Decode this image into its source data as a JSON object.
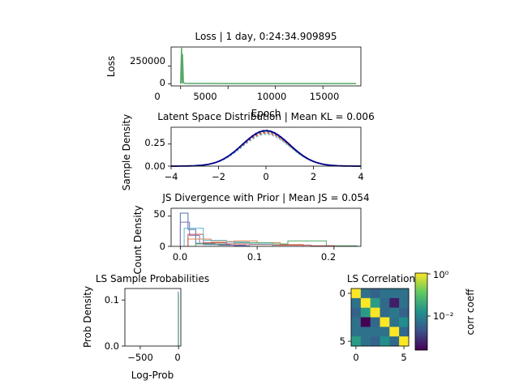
{
  "chart_data": [
    {
      "id": "loss",
      "type": "line",
      "title": "Loss | 1 day, 0:24:34.909895",
      "xlabel": "Epoch",
      "ylabel": "Loss",
      "xlim": [
        -1000,
        19000
      ],
      "ylim": [
        -30000,
        520000
      ],
      "xticks": [
        0,
        5000,
        10000,
        15000
      ],
      "yticks": [
        0,
        250000
      ],
      "color": "#55a868",
      "series": [
        {
          "x": [
            0,
            100,
            150,
            200,
            300,
            500,
            1000,
            5000,
            10000,
            15000,
            18500
          ],
          "y": [
            0,
            510000,
            5000,
            420000,
            12000,
            6000,
            4000,
            3000,
            3000,
            3000,
            3000
          ]
        }
      ]
    },
    {
      "id": "latent",
      "type": "line",
      "title": "Latent Space Distribution | Mean KL = 0.006",
      "xlabel": "",
      "ylabel": "Sample Density",
      "xlim": [
        -4,
        4
      ],
      "ylim": [
        0,
        0.44
      ],
      "xticks": [
        -4,
        -2,
        0,
        2,
        4
      ],
      "yticks": [
        0.0,
        0.25
      ],
      "prior_color": "#00008b",
      "series_colors": [
        "#4c72b0",
        "#dd8452",
        "#55a868",
        "#c44e52",
        "#8172b3",
        "#64b5cd"
      ],
      "series_scales": [
        1.0,
        0.93,
        0.97,
        0.95,
        1.02,
        0.9
      ],
      "prior_peak": 0.4
    },
    {
      "id": "js",
      "type": "histogram",
      "title": "JS Divergence with Prior | Mean JS = 0.054",
      "xlabel": "",
      "ylabel": "Count Density",
      "xlim": [
        -0.012,
        0.235
      ],
      "ylim": [
        0,
        63
      ],
      "xticks": [
        0.0,
        0.1,
        0.2
      ],
      "yticks": [
        0,
        50
      ],
      "series": [
        {
          "color": "#4c72b0",
          "edges": [
            0.0,
            0.01,
            0.02,
            0.03,
            0.05,
            0.07,
            0.09
          ],
          "counts": [
            55,
            28,
            5,
            3,
            2,
            1
          ]
        },
        {
          "color": "#8172b3",
          "edges": [
            0.0,
            0.012,
            0.025,
            0.045,
            0.065,
            0.085
          ],
          "counts": [
            40,
            18,
            5,
            3,
            2
          ]
        },
        {
          "color": "#dd8452",
          "edges": [
            0.01,
            0.04,
            0.07,
            0.1,
            0.13,
            0.16
          ],
          "counts": [
            12,
            8,
            9,
            6,
            3
          ]
        },
        {
          "color": "#55a868",
          "edges": [
            0.02,
            0.07,
            0.12,
            0.14,
            0.19,
            0.23
          ],
          "counts": [
            4,
            6,
            4,
            9,
            1
          ]
        },
        {
          "color": "#c44e52",
          "edges": [
            0.01,
            0.03,
            0.06,
            0.09,
            0.12,
            0.17,
            0.2
          ],
          "counts": [
            20,
            6,
            4,
            3,
            2,
            1
          ]
        },
        {
          "color": "#64b5cd",
          "edges": [
            0.005,
            0.03,
            0.06,
            0.09,
            0.12
          ],
          "counts": [
            30,
            10,
            7,
            4
          ]
        }
      ]
    },
    {
      "id": "logprob",
      "type": "histogram",
      "title": "LS Sample Probabilities",
      "xlabel": "Log-Prob",
      "ylabel": "Prob Density",
      "xlim": [
        -700,
        30
      ],
      "ylim": [
        0,
        0.125
      ],
      "xticks": [
        -500,
        0
      ],
      "yticks": [
        0.0,
        0.1
      ],
      "bars": [
        {
          "x": -3,
          "value": 0.118,
          "color": "#4c72b0"
        },
        {
          "x": 0,
          "value": 0.112,
          "color": "#55a868"
        }
      ]
    },
    {
      "id": "corr",
      "type": "heatmap",
      "title": "LS Correlation",
      "xlabel": "",
      "ylabel": "",
      "xticks": [
        0,
        5
      ],
      "yticks": [
        0,
        5
      ],
      "colorbar_label": "corr coeff",
      "colorbar_ticks": [
        "10⁰",
        "10⁻²"
      ],
      "colormap": "viridis",
      "scale": "log",
      "vmin_exp": -3.5,
      "vmax_exp": 0,
      "matrix_exp": [
        [
          0,
          -2.2,
          -2.4,
          -2.2,
          -2.2,
          -2.2
        ],
        [
          -2.2,
          0,
          -1.6,
          -2.3,
          -3.2,
          -2.2
        ],
        [
          -2.4,
          -1.6,
          0,
          -2.3,
          -2.1,
          -2.4
        ],
        [
          -2.2,
          -3.5,
          -2.3,
          0,
          -2.2,
          -1.8
        ],
        [
          -2.2,
          -2.2,
          -2.2,
          -2.2,
          0,
          -2.3
        ],
        [
          -1.6,
          -2.2,
          -2.4,
          -1.8,
          -2.3,
          0
        ]
      ]
    }
  ],
  "tick_labels": {
    "loss_x": [
      "0",
      "5000",
      "10000",
      "15000"
    ],
    "loss_y": [
      "250000",
      "0"
    ],
    "latent_x": [
      "−4",
      "−2",
      "0",
      "2",
      "4"
    ],
    "latent_y": [
      "0.25",
      "0.00"
    ],
    "js_x": [
      "0.0",
      "0.1",
      "0.2"
    ],
    "js_y": [
      "50",
      "0"
    ],
    "lp_x": [
      "−500",
      "0"
    ],
    "lp_y": [
      "0.1",
      "0.0"
    ],
    "corr_x": [
      "0",
      "5"
    ],
    "corr_y": [
      "0",
      "5"
    ]
  }
}
